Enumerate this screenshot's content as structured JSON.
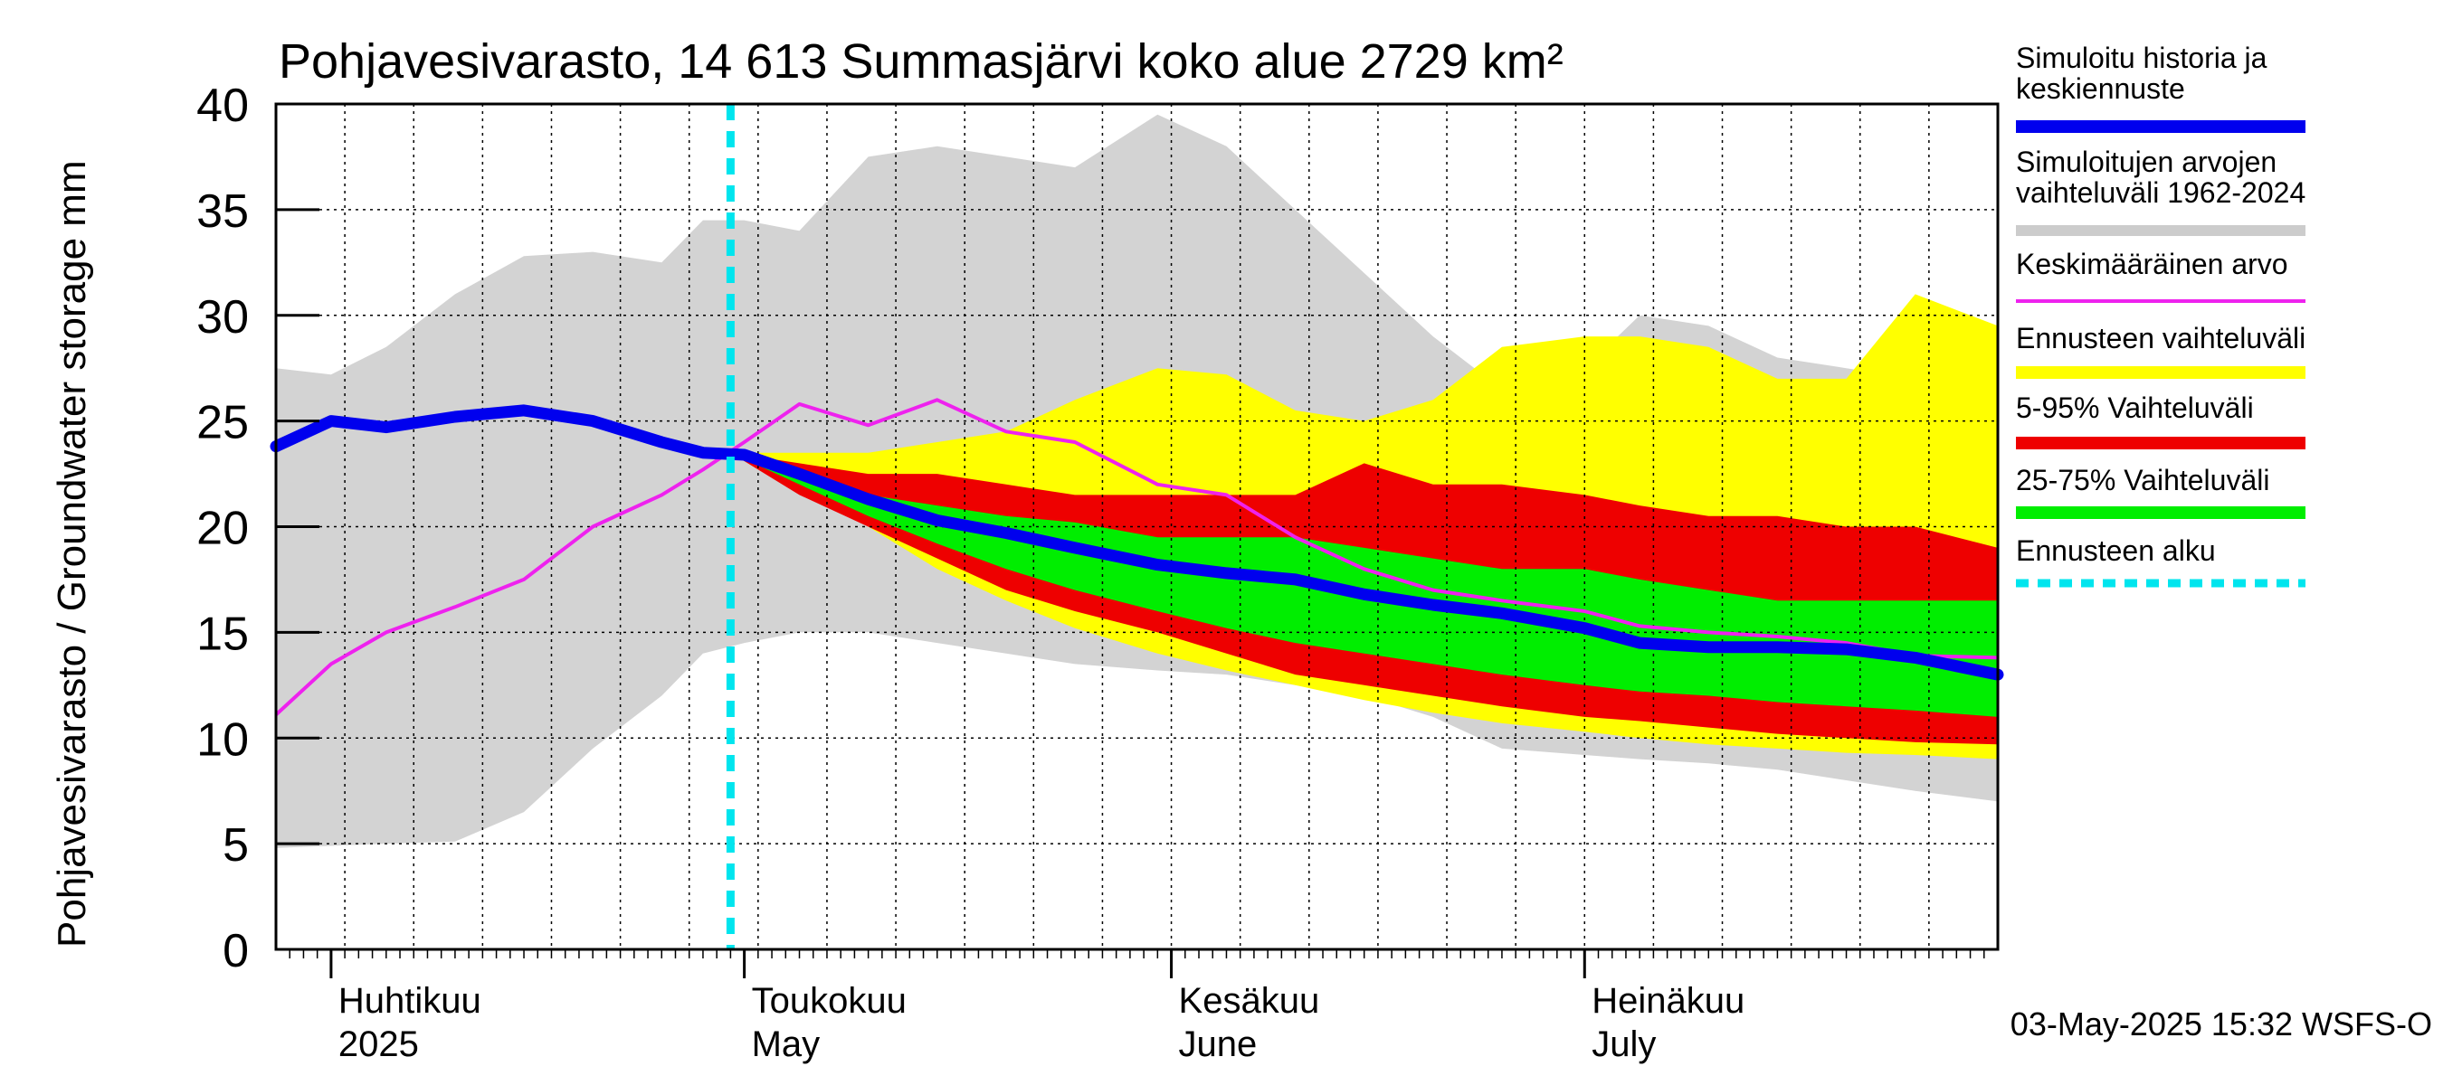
{
  "chart_data": {
    "type": "area",
    "title": "Pohjavesivarasto, 14 613 Summasjärvi koko alue 2729 km²",
    "ylabel": "Pohjavesivarasto / Groundwater storage   mm",
    "ylim": [
      0,
      40
    ],
    "xlim": [
      "2025-03-28",
      "2025-07-31"
    ],
    "yticks": [
      0,
      5,
      10,
      15,
      20,
      25,
      30,
      35,
      40
    ],
    "month_labels": [
      {
        "date": "2025-04-01",
        "fi": "Huhtikuu",
        "en": "2025"
      },
      {
        "date": "2025-05-01",
        "fi": "Toukokuu",
        "en": "May"
      },
      {
        "date": "2025-06-01",
        "fi": "Kesäkuu",
        "en": "June"
      },
      {
        "date": "2025-07-01",
        "fi": "Heinäkuu",
        "en": "July"
      }
    ],
    "forecast_start": "2025-04-30",
    "legend": {
      "placement": "right",
      "entries": [
        {
          "lines": [
            "Simuloitu historia ja",
            "keskiennuste"
          ],
          "color": "#0000ee",
          "style": "thick"
        },
        {
          "lines": [
            "Simuloitujen arvojen",
            "vaihteluväli 1962-2024"
          ],
          "color": "#cccccc",
          "style": "line"
        },
        {
          "lines": [
            "Keskimääräinen arvo"
          ],
          "color": "#ee22ee",
          "style": "thin"
        },
        {
          "lines": [
            "Ennusteen vaihteluväli"
          ],
          "color": "#ffff00",
          "style": "band"
        },
        {
          "lines": [
            "5-95% Vaihteluväli"
          ],
          "color": "#ee0000",
          "style": "band"
        },
        {
          "lines": [
            "25-75% Vaihteluväli"
          ],
          "color": "#00ee00",
          "style": "band"
        },
        {
          "lines": [
            "Ennusteen alku"
          ],
          "color": "#00e5ee",
          "style": "dashed"
        }
      ]
    },
    "timestamp": "03-May-2025 15:32 WSFS-O",
    "colors": {
      "history_band": "#d3d3d3",
      "forecast_band": "#ffff00",
      "band_5_95": "#ee0000",
      "band_25_75": "#00ee00",
      "median": "#0000ee",
      "mean": "#ee22ee",
      "forecast_start": "#00e5ee"
    },
    "series": {
      "history_range": {
        "x": [
          "2025-03-28",
          "2025-04-01",
          "2025-04-05",
          "2025-04-10",
          "2025-04-15",
          "2025-04-20",
          "2025-04-25",
          "2025-04-28",
          "2025-05-01",
          "2025-05-05",
          "2025-05-10",
          "2025-05-15",
          "2025-05-20",
          "2025-05-25",
          "2025-05-31",
          "2025-06-05",
          "2025-06-10",
          "2025-06-15",
          "2025-06-20",
          "2025-06-25",
          "2025-07-01",
          "2025-07-05",
          "2025-07-10",
          "2025-07-15",
          "2025-07-20",
          "2025-07-25",
          "2025-07-31"
        ],
        "upper": [
          27.5,
          27.2,
          28.5,
          31.0,
          32.8,
          33.0,
          32.5,
          34.5,
          34.5,
          34.0,
          37.5,
          38.0,
          37.5,
          37.0,
          39.5,
          38.0,
          35.0,
          32.0,
          29.0,
          26.5,
          27.5,
          30.0,
          29.5,
          28.0,
          27.5,
          27.0,
          28.0
        ],
        "lower": [
          4.8,
          4.9,
          5.0,
          5.1,
          6.5,
          9.5,
          12.0,
          14.0,
          14.5,
          15.0,
          15.0,
          14.5,
          14.0,
          13.5,
          13.2,
          13.0,
          12.5,
          12.0,
          11.0,
          9.5,
          9.2,
          9.0,
          8.8,
          8.5,
          8.0,
          7.5,
          7.0
        ]
      },
      "forecast_range": {
        "x": [
          "2025-04-30",
          "2025-05-05",
          "2025-05-10",
          "2025-05-15",
          "2025-05-20",
          "2025-05-25",
          "2025-05-31",
          "2025-06-05",
          "2025-06-10",
          "2025-06-15",
          "2025-06-20",
          "2025-06-25",
          "2025-07-01",
          "2025-07-05",
          "2025-07-10",
          "2025-07-15",
          "2025-07-20",
          "2025-07-25",
          "2025-07-31"
        ],
        "upper": [
          23.5,
          23.5,
          23.5,
          24.0,
          24.5,
          26.0,
          27.5,
          27.2,
          25.5,
          25.0,
          26.0,
          28.5,
          29.0,
          29.0,
          28.5,
          27.0,
          27.0,
          31.0,
          29.5
        ],
        "lower": [
          23.5,
          22.0,
          20.0,
          18.0,
          16.5,
          15.2,
          14.0,
          13.2,
          12.5,
          11.8,
          11.2,
          10.7,
          10.3,
          10.0,
          9.7,
          9.5,
          9.3,
          9.2,
          9.0
        ]
      },
      "band_5_95": {
        "x": [
          "2025-04-30",
          "2025-05-05",
          "2025-05-10",
          "2025-05-15",
          "2025-05-20",
          "2025-05-25",
          "2025-05-31",
          "2025-06-05",
          "2025-06-10",
          "2025-06-15",
          "2025-06-20",
          "2025-06-25",
          "2025-07-01",
          "2025-07-05",
          "2025-07-10",
          "2025-07-15",
          "2025-07-20",
          "2025-07-25",
          "2025-07-31"
        ],
        "upper": [
          23.5,
          23.0,
          22.5,
          22.5,
          22.0,
          21.5,
          21.5,
          21.5,
          21.5,
          23.0,
          22.0,
          22.0,
          21.5,
          21.0,
          20.5,
          20.5,
          20.0,
          20.0,
          19.0
        ],
        "lower": [
          23.5,
          21.5,
          20.0,
          18.5,
          17.0,
          16.0,
          15.0,
          14.0,
          13.0,
          12.5,
          12.0,
          11.5,
          11.0,
          10.8,
          10.5,
          10.2,
          10.0,
          9.8,
          9.7
        ]
      },
      "band_25_75": {
        "x": [
          "2025-04-30",
          "2025-05-05",
          "2025-05-10",
          "2025-05-15",
          "2025-05-20",
          "2025-05-25",
          "2025-05-31",
          "2025-06-05",
          "2025-06-10",
          "2025-06-15",
          "2025-06-20",
          "2025-06-25",
          "2025-07-01",
          "2025-07-05",
          "2025-07-10",
          "2025-07-15",
          "2025-07-20",
          "2025-07-25",
          "2025-07-31"
        ],
        "upper": [
          23.5,
          22.5,
          21.5,
          21.0,
          20.5,
          20.2,
          19.5,
          19.5,
          19.5,
          19.0,
          18.5,
          18.0,
          18.0,
          17.5,
          17.0,
          16.5,
          16.5,
          16.5,
          16.5
        ],
        "lower": [
          23.5,
          22.0,
          20.5,
          19.2,
          18.0,
          17.0,
          16.0,
          15.2,
          14.5,
          14.0,
          13.5,
          13.0,
          12.5,
          12.2,
          12.0,
          11.7,
          11.5,
          11.3,
          11.0
        ]
      },
      "median": {
        "x": [
          "2025-03-28",
          "2025-04-01",
          "2025-04-05",
          "2025-04-10",
          "2025-04-15",
          "2025-04-20",
          "2025-04-25",
          "2025-04-28",
          "2025-05-01",
          "2025-05-05",
          "2025-05-10",
          "2025-05-15",
          "2025-05-20",
          "2025-05-25",
          "2025-05-31",
          "2025-06-05",
          "2025-06-10",
          "2025-06-15",
          "2025-06-20",
          "2025-06-25",
          "2025-07-01",
          "2025-07-05",
          "2025-07-10",
          "2025-07-15",
          "2025-07-20",
          "2025-07-25",
          "2025-07-31"
        ],
        "y": [
          23.8,
          25.0,
          24.7,
          25.2,
          25.5,
          25.0,
          24.0,
          23.5,
          23.4,
          22.5,
          21.3,
          20.3,
          19.7,
          19.0,
          18.2,
          17.8,
          17.5,
          16.8,
          16.3,
          15.9,
          15.2,
          14.5,
          14.3,
          14.3,
          14.2,
          13.8,
          13.0
        ]
      },
      "mean": {
        "x": [
          "2025-03-28",
          "2025-04-01",
          "2025-04-05",
          "2025-04-10",
          "2025-04-15",
          "2025-04-20",
          "2025-04-25",
          "2025-04-28",
          "2025-05-01",
          "2025-05-05",
          "2025-05-10",
          "2025-05-15",
          "2025-05-20",
          "2025-05-25",
          "2025-05-31",
          "2025-06-05",
          "2025-06-10",
          "2025-06-15",
          "2025-06-20",
          "2025-06-25",
          "2025-07-01",
          "2025-07-05",
          "2025-07-10",
          "2025-07-15",
          "2025-07-20",
          "2025-07-25",
          "2025-07-31"
        ],
        "y": [
          11.1,
          13.5,
          15.0,
          16.2,
          17.5,
          20.0,
          21.5,
          22.7,
          24.0,
          25.8,
          24.8,
          26.0,
          24.5,
          24.0,
          22.0,
          21.5,
          19.5,
          18.0,
          17.0,
          16.5,
          16.0,
          15.3,
          15.0,
          14.8,
          14.5,
          13.9,
          13.8
        ]
      }
    }
  }
}
